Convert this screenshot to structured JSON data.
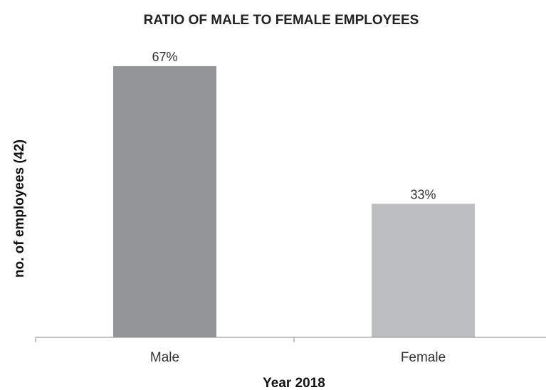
{
  "chart_data": {
    "type": "bar",
    "title": "RATIO OF MALE TO FEMALE EMPLOYEES",
    "xlabel": "Year 2018",
    "ylabel": "no. of employees (42)",
    "categories": [
      "Male",
      "Female"
    ],
    "values": [
      67,
      33
    ],
    "data_labels": [
      "67%",
      "33%"
    ],
    "ylim": [
      0,
      75
    ],
    "grid": false,
    "legend": "none",
    "colors": [
      "#939496",
      "#bdbec0"
    ]
  }
}
